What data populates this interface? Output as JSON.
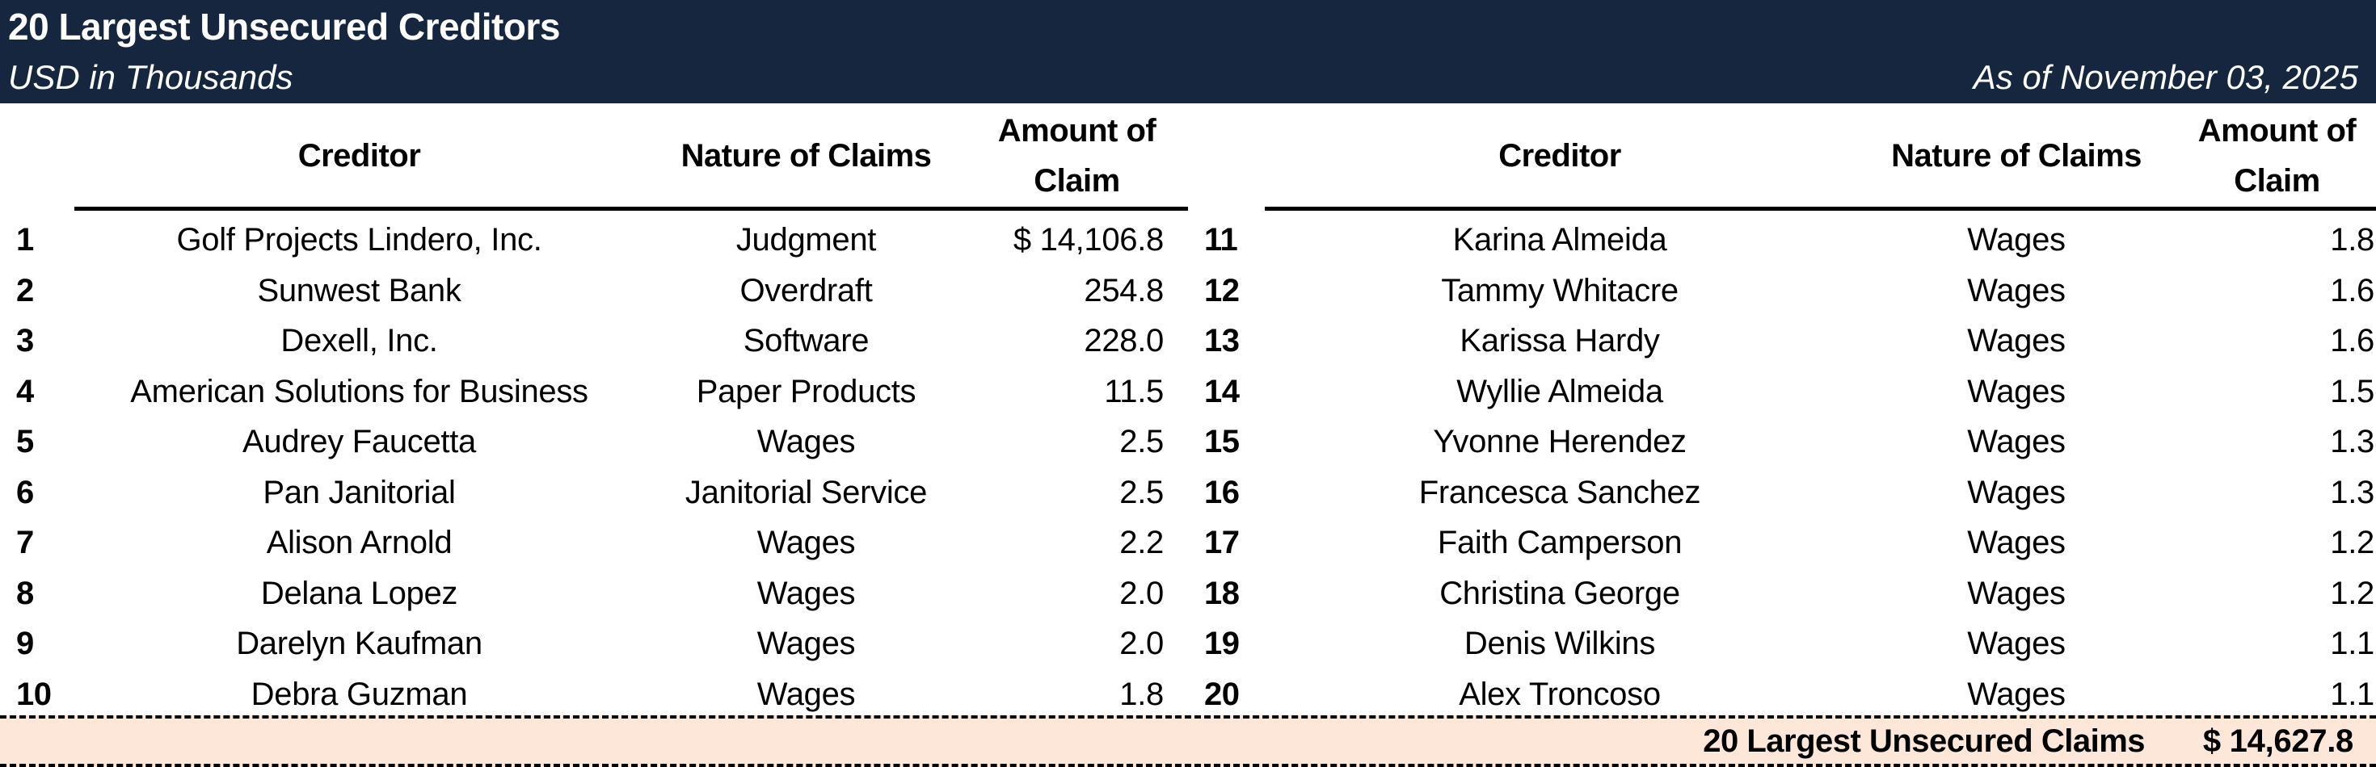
{
  "header": {
    "title": "20 Largest Unsecured Creditors",
    "subtitle": "USD in Thousands",
    "as_of": "As of November 03, 2025"
  },
  "colors": {
    "header_bg": "#17263F",
    "header_text": "#FFFFFF",
    "total_band_bg": "#FCE7D9"
  },
  "columns": {
    "creditor": "Creditor",
    "nature": "Nature of Claims",
    "amount_line1": "Amount of",
    "amount_line2": "Claim"
  },
  "left_rows": [
    {
      "num": "1",
      "creditor": "Golf Projects Lindero, Inc.",
      "nature": "Judgment",
      "amount": "$ 14,106.8"
    },
    {
      "num": "2",
      "creditor": "Sunwest Bank",
      "nature": "Overdraft",
      "amount": "254.8"
    },
    {
      "num": "3",
      "creditor": "Dexell, Inc.",
      "nature": "Software",
      "amount": "228.0"
    },
    {
      "num": "4",
      "creditor": "American Solutions for Business",
      "nature": "Paper Products",
      "amount": "11.5"
    },
    {
      "num": "5",
      "creditor": "Audrey Faucetta",
      "nature": "Wages",
      "amount": "2.5"
    },
    {
      "num": "6",
      "creditor": "Pan Janitorial",
      "nature": "Janitorial Service",
      "amount": "2.5"
    },
    {
      "num": "7",
      "creditor": "Alison Arnold",
      "nature": "Wages",
      "amount": "2.2"
    },
    {
      "num": "8",
      "creditor": "Delana Lopez",
      "nature": "Wages",
      "amount": "2.0"
    },
    {
      "num": "9",
      "creditor": "Darelyn Kaufman",
      "nature": "Wages",
      "amount": "2.0"
    },
    {
      "num": "10",
      "creditor": "Debra Guzman",
      "nature": "Wages",
      "amount": "1.8"
    }
  ],
  "right_rows": [
    {
      "num": "11",
      "creditor": "Karina Almeida",
      "nature": "Wages",
      "amount": "1.8"
    },
    {
      "num": "12",
      "creditor": "Tammy Whitacre",
      "nature": "Wages",
      "amount": "1.6"
    },
    {
      "num": "13",
      "creditor": "Karissa Hardy",
      "nature": "Wages",
      "amount": "1.6"
    },
    {
      "num": "14",
      "creditor": "Wyllie Almeida",
      "nature": "Wages",
      "amount": "1.5"
    },
    {
      "num": "15",
      "creditor": "Yvonne Herendez",
      "nature": "Wages",
      "amount": "1.3"
    },
    {
      "num": "16",
      "creditor": "Francesca Sanchez",
      "nature": "Wages",
      "amount": "1.3"
    },
    {
      "num": "17",
      "creditor": "Faith Camperson",
      "nature": "Wages",
      "amount": "1.2"
    },
    {
      "num": "18",
      "creditor": "Christina George",
      "nature": "Wages",
      "amount": "1.2"
    },
    {
      "num": "19",
      "creditor": "Denis Wilkins",
      "nature": "Wages",
      "amount": "1.1"
    },
    {
      "num": "20",
      "creditor": "Alex Troncoso",
      "nature": "Wages",
      "amount": "1.1"
    }
  ],
  "total": {
    "label": "20 Largest Unsecured Claims",
    "value": "$ 14,627.8"
  }
}
